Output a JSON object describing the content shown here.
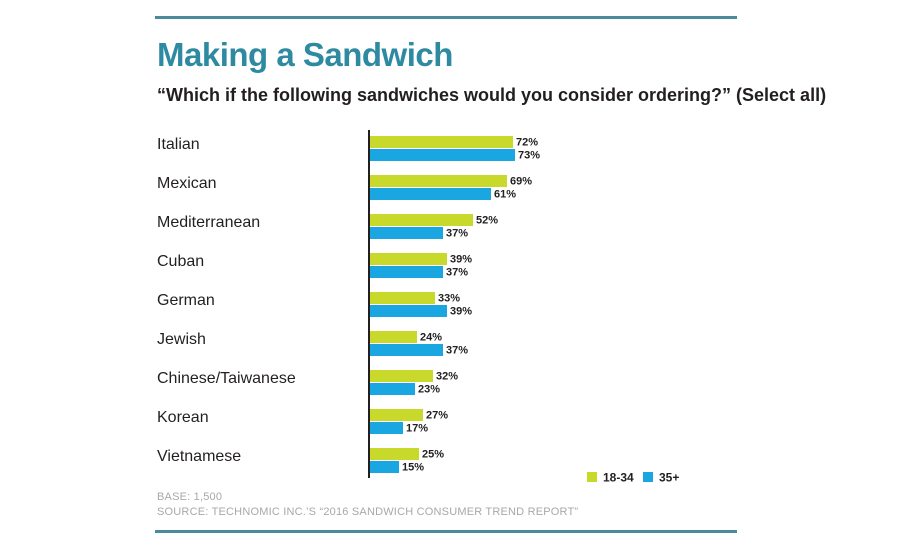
{
  "chart_data": {
    "type": "bar",
    "orientation": "horizontal",
    "title": "Making a Sandwich",
    "subtitle": "“Which if the following sandwiches would you consider ordering?” (Select all)",
    "categories": [
      "Italian",
      "Mexican",
      "Mediterranean",
      "Cuban",
      "German",
      "Jewish",
      "Chinese/Taiwanese",
      "Korean",
      "Vietnamese"
    ],
    "series": [
      {
        "name": "18-34",
        "color": "#c8d92b",
        "values": [
          72,
          69,
          52,
          39,
          33,
          24,
          32,
          27,
          25
        ]
      },
      {
        "name": "35+",
        "color": "#1aa7e1",
        "values": [
          73,
          61,
          37,
          37,
          39,
          37,
          23,
          17,
          15
        ]
      }
    ],
    "value_suffix": "%",
    "xlim": [
      0,
      100
    ],
    "grid": false,
    "legend": "bottom-right"
  },
  "footer": {
    "base": "BASE: 1,500",
    "source": "SOURCE: TECHNOMIC INC.’S “2016 SANDWICH CONSUMER TREND REPORT”"
  }
}
